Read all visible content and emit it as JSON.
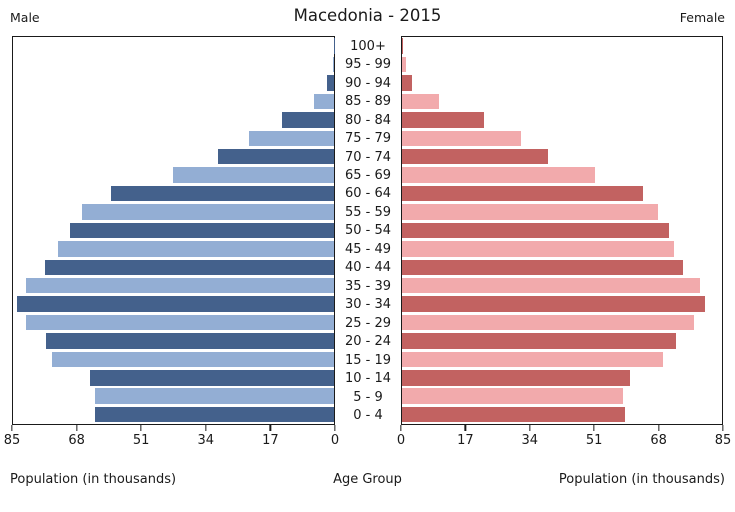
{
  "header": {
    "left_label": "Male",
    "title": "Macedonia - 2015",
    "right_label": "Female"
  },
  "footer": {
    "left_axis_title": "Population (in thousands)",
    "center_axis_title": "Age Group",
    "right_axis_title": "Population (in thousands)"
  },
  "axes": {
    "male_tick_labels": [
      "85",
      "68",
      "51",
      "34",
      "17",
      "0"
    ],
    "female_tick_labels": [
      "0",
      "17",
      "34",
      "51",
      "68",
      "85"
    ]
  },
  "colors": {
    "male_dark": "#44618C",
    "male_light": "#93AED4",
    "female_dark": "#C26261",
    "female_light": "#F2AAAC",
    "axis": "#1a1a1a"
  },
  "chart_data": {
    "type": "bar",
    "subtype": "population-pyramid",
    "title": "Macedonia - 2015",
    "unit": "thousands",
    "categories": [
      "100+",
      "95 - 99",
      "90 - 94",
      "85 - 89",
      "80 - 84",
      "75 - 79",
      "70 - 74",
      "65 - 69",
      "60 - 64",
      "55 - 59",
      "50 - 54",
      "45 - 49",
      "40 - 44",
      "35 - 39",
      "30 - 34",
      "25 - 29",
      "20 - 24",
      "15 - 19",
      "10 - 14",
      "5 - 9",
      "0 - 4"
    ],
    "series": [
      {
        "name": "Male",
        "side": "left",
        "values": [
          0.1,
          0.4,
          1.8,
          5.4,
          13.8,
          22.5,
          30.7,
          42.7,
          59.0,
          66.7,
          70.0,
          73.1,
          76.5,
          81.5,
          84.0,
          81.5,
          76.4,
          74.6,
          64.5,
          63.4,
          63.4
        ]
      },
      {
        "name": "Female",
        "side": "right",
        "values": [
          0.2,
          1.0,
          2.7,
          9.7,
          21.7,
          31.5,
          38.8,
          51.3,
          64.1,
          68.1,
          71.0,
          72.2,
          74.7,
          79.1,
          80.6,
          77.6,
          72.9,
          69.4,
          60.5,
          58.8,
          59.2
        ]
      }
    ],
    "x_axis": {
      "label": "Population (in thousands)",
      "range": [
        0,
        85
      ],
      "ticks": [
        0,
        17,
        34,
        51,
        68,
        85
      ]
    },
    "y_axis": {
      "label": "Age Group"
    },
    "legend": "none",
    "grid": false
  }
}
